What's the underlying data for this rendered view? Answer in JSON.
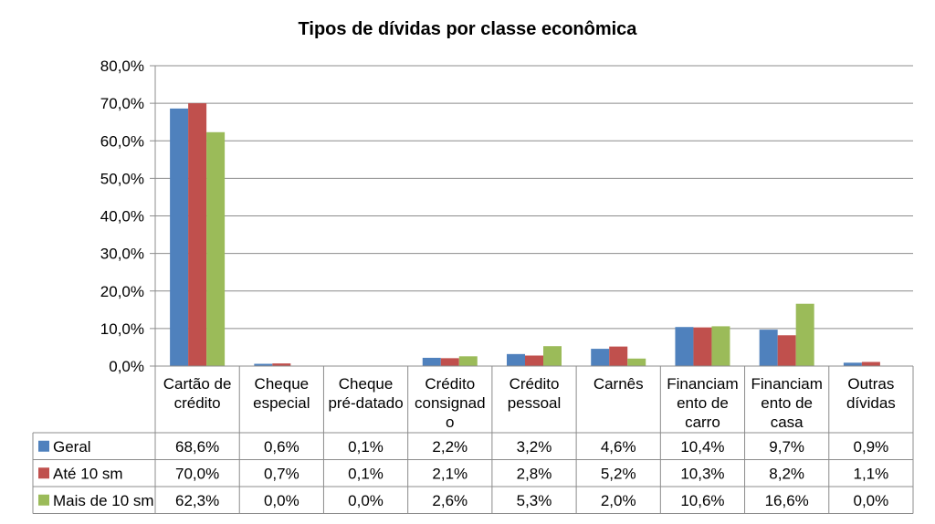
{
  "chart_data": {
    "type": "bar",
    "title": "Tipos de dívidas por classe econômica",
    "xlabel": "",
    "ylabel": "",
    "ylim": [
      0,
      80
    ],
    "y_ticks": [
      "0,0%",
      "10,0%",
      "20,0%",
      "30,0%",
      "40,0%",
      "50,0%",
      "60,0%",
      "70,0%",
      "80,0%"
    ],
    "grid": true,
    "legend": "data-table",
    "categories": [
      [
        "Cartão de",
        "crédito"
      ],
      [
        "Cheque",
        "especial"
      ],
      [
        "Cheque",
        "pré-datado"
      ],
      [
        "Crédito",
        "consignad",
        "o"
      ],
      [
        "Crédito",
        "pessoal"
      ],
      [
        "Carnês"
      ],
      [
        "Financiam",
        "ento de",
        "carro"
      ],
      [
        "Financiam",
        "ento de",
        "casa"
      ],
      [
        "Outras",
        "dívidas"
      ]
    ],
    "series": [
      {
        "name": "Geral",
        "color": "#4F81BD",
        "values": [
          68.6,
          0.6,
          0.1,
          2.2,
          3.2,
          4.6,
          10.4,
          9.7,
          0.9
        ],
        "labels": [
          "68,6%",
          "0,6%",
          "0,1%",
          "2,2%",
          "3,2%",
          "4,6%",
          "10,4%",
          "9,7%",
          "0,9%"
        ]
      },
      {
        "name": "Até 10 sm",
        "color": "#C0504D",
        "values": [
          70.0,
          0.7,
          0.1,
          2.1,
          2.8,
          5.2,
          10.3,
          8.2,
          1.1
        ],
        "labels": [
          "70,0%",
          "0,7%",
          "0,1%",
          "2,1%",
          "2,8%",
          "5,2%",
          "10,3%",
          "8,2%",
          "1,1%"
        ]
      },
      {
        "name": "Mais de 10 sm",
        "color": "#9BBB59",
        "values": [
          62.3,
          0.0,
          0.0,
          2.6,
          5.3,
          2.0,
          10.6,
          16.6,
          0.0
        ],
        "labels": [
          "62,3%",
          "0,0%",
          "0,0%",
          "2,6%",
          "5,3%",
          "2,0%",
          "10,6%",
          "16,6%",
          "0,0%"
        ]
      }
    ]
  }
}
